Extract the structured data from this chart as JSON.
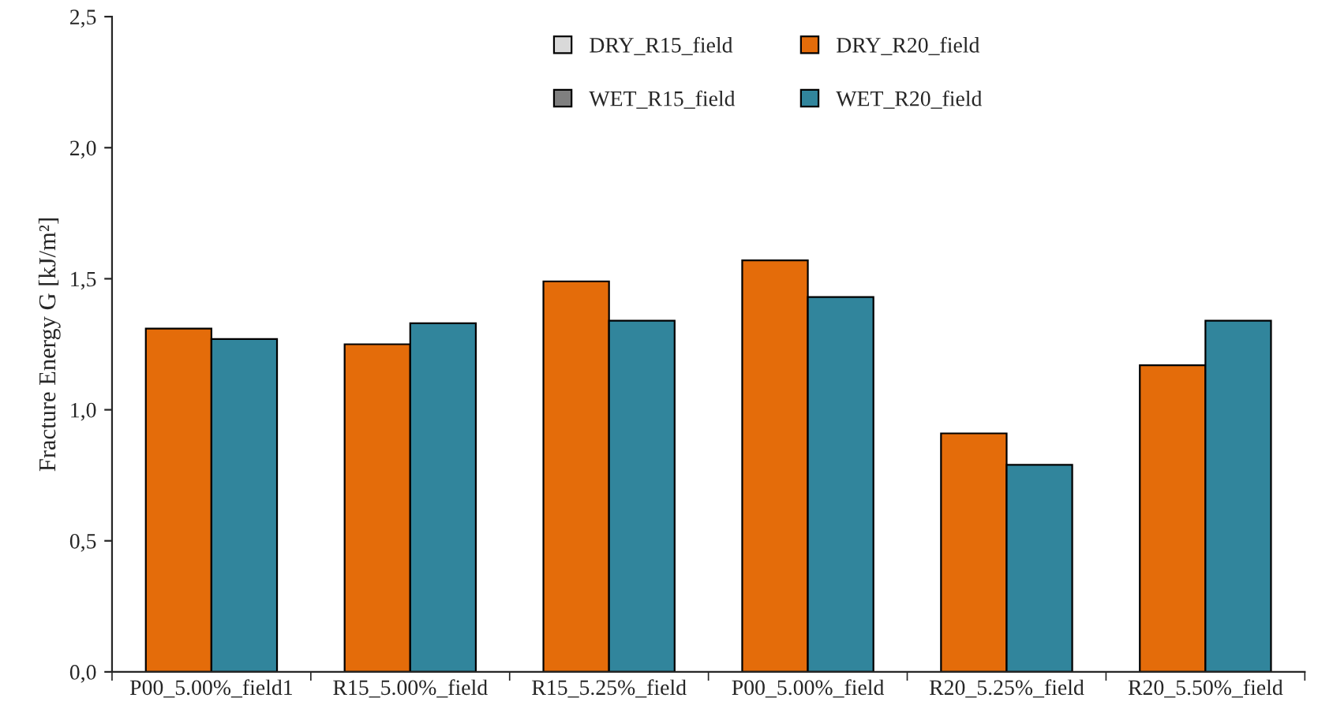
{
  "chart_data": {
    "type": "bar",
    "ylabel": "Fracture Energy G [kJ/m²]",
    "categories": [
      "P00_5.00%_field1",
      "R15_5.00%_field",
      "R15_5.25%_field",
      "P00_5.00%_field",
      "R20_5.25%_field",
      "R20_5.50%_field"
    ],
    "series": [
      {
        "name": "DRY_R15_field",
        "color": "#d9d9d9",
        "values": [
          null,
          null,
          null,
          null,
          null,
          null
        ]
      },
      {
        "name": "WET_R15_field",
        "color": "#7f7f7f",
        "values": [
          null,
          null,
          null,
          null,
          null,
          null
        ]
      },
      {
        "name": "DRY_R20_field",
        "color": "#e46c0a",
        "values": [
          1.31,
          1.25,
          1.49,
          1.57,
          0.91,
          1.17
        ]
      },
      {
        "name": "WET_R20_field",
        "color": "#31859c",
        "values": [
          1.27,
          1.33,
          1.34,
          1.43,
          0.79,
          1.34
        ]
      }
    ],
    "ylim": [
      0,
      2.5
    ],
    "yticks": [
      {
        "value": 0,
        "label": "0,0"
      },
      {
        "value": 0.5,
        "label": "0,5"
      },
      {
        "value": 1,
        "label": "1,0"
      },
      {
        "value": 1.5,
        "label": "1,5"
      },
      {
        "value": 2,
        "label": "2,0"
      },
      {
        "value": 2.5,
        "label": "2,5"
      }
    ],
    "grid": false,
    "legend": "top"
  }
}
